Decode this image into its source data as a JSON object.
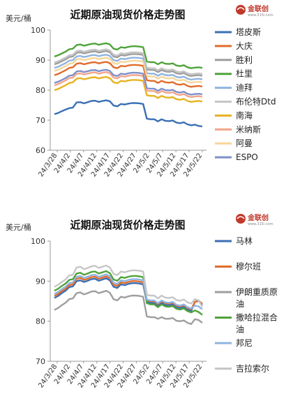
{
  "chart_data": [
    {
      "type": "line",
      "title": "近期原油现货价格走势图",
      "unit_label": "美元/桶",
      "ylim": [
        60,
        100
      ],
      "yticks": [
        60,
        70,
        80,
        90,
        100
      ],
      "grid": false,
      "legend_position": "right",
      "x_tick_labels": [
        "24/3/28",
        "24/4/2",
        "24/4/7",
        "24/4/12",
        "24/4/17",
        "24/4/22",
        "24/4/27",
        "24/5/2",
        "24/5/7",
        "24/5/12",
        "24/5/17",
        "24/5/22"
      ],
      "x": [
        "3/28",
        "3/29",
        "4/1",
        "4/2",
        "4/3",
        "4/4",
        "4/5",
        "4/8",
        "4/9",
        "4/10",
        "4/11",
        "4/12",
        "4/15",
        "4/16",
        "4/17",
        "4/18",
        "4/19",
        "4/22",
        "4/23",
        "4/24",
        "4/25",
        "4/26",
        "4/29",
        "4/30",
        "5/1",
        "5/2",
        "5/3",
        "5/6",
        "5/7",
        "5/8",
        "5/9",
        "5/10",
        "5/13",
        "5/14",
        "5/15",
        "5/16",
        "5/17",
        "5/20",
        "5/21",
        "5/22",
        "5/23"
      ],
      "series": [
        {
          "name": "塔皮斯",
          "color": "#3a6fb5",
          "values": [
            72.0,
            72.4,
            73.0,
            73.5,
            74.0,
            74.2,
            75.9,
            76.0,
            75.6,
            76.0,
            76.4,
            76.5,
            76.1,
            76.4,
            76.6,
            76.3,
            74.9,
            74.6,
            75.4,
            75.2,
            75.5,
            75.7,
            75.7,
            75.6,
            75.4,
            70.5,
            70.3,
            70.3,
            69.6,
            70.3,
            69.8,
            69.7,
            69.9,
            69.2,
            69.0,
            69.3,
            68.6,
            68.3,
            68.5,
            68.1,
            67.9
          ]
        },
        {
          "name": "大庆",
          "color": "#e06c2c",
          "values": [
            85.0,
            85.4,
            86.0,
            86.6,
            87.4,
            87.6,
            88.8,
            89.0,
            88.6,
            88.9,
            89.2,
            89.3,
            88.9,
            89.2,
            89.4,
            89.0,
            87.6,
            87.3,
            88.1,
            87.9,
            88.2,
            88.4,
            88.4,
            88.3,
            88.1,
            83.3,
            83.1,
            83.1,
            82.4,
            83.1,
            82.6,
            82.5,
            82.7,
            82.0,
            81.8,
            82.1,
            81.4,
            81.1,
            81.3,
            81.4,
            81.2
          ]
        },
        {
          "name": "胜利",
          "color": "#9e9e9e",
          "values": [
            88.6,
            89.0,
            89.6,
            90.2,
            91.0,
            91.2,
            92.4,
            92.6,
            92.2,
            92.5,
            92.8,
            92.9,
            92.5,
            92.8,
            93.0,
            92.6,
            91.2,
            90.9,
            91.7,
            91.5,
            91.8,
            92.0,
            92.0,
            91.9,
            91.7,
            86.9,
            86.7,
            86.7,
            86.0,
            86.7,
            86.2,
            86.1,
            86.3,
            85.6,
            85.4,
            85.7,
            85.0,
            84.7,
            84.9,
            85.0,
            84.8
          ]
        },
        {
          "name": "杜里",
          "color": "#4ea33a",
          "values": [
            91.2,
            91.6,
            92.2,
            92.8,
            93.6,
            93.8,
            95.0,
            95.2,
            94.8,
            95.1,
            95.4,
            95.5,
            95.1,
            95.4,
            95.6,
            95.2,
            93.8,
            93.5,
            94.3,
            94.1,
            94.4,
            94.6,
            94.6,
            94.5,
            94.3,
            89.5,
            89.3,
            89.3,
            88.6,
            89.3,
            88.8,
            88.7,
            88.9,
            88.2,
            88.0,
            88.3,
            87.6,
            87.3,
            87.5,
            87.6,
            87.4
          ]
        },
        {
          "name": "迪拜",
          "color": "#8fb4e0",
          "values": [
            87.4,
            87.8,
            88.4,
            89.0,
            89.8,
            90.0,
            91.2,
            91.4,
            91.0,
            91.3,
            91.6,
            91.7,
            91.3,
            91.6,
            91.8,
            91.4,
            90.0,
            89.7,
            90.5,
            90.3,
            90.6,
            90.8,
            90.8,
            90.7,
            90.5,
            85.7,
            85.5,
            85.5,
            84.8,
            85.5,
            85.0,
            84.9,
            85.1,
            84.4,
            84.2,
            84.5,
            83.8,
            83.5,
            83.7,
            83.8,
            83.6
          ]
        },
        {
          "name": "布伦特Dtd",
          "color": "#c6c6c6",
          "values": [
            89.2,
            89.6,
            90.2,
            90.8,
            91.6,
            91.8,
            93.0,
            93.2,
            92.8,
            93.1,
            93.4,
            93.5,
            93.1,
            93.4,
            93.6,
            93.2,
            91.8,
            91.5,
            92.3,
            92.1,
            92.4,
            92.6,
            92.6,
            92.5,
            92.3,
            87.5,
            87.3,
            87.3,
            86.6,
            87.3,
            86.8,
            86.7,
            86.9,
            86.2,
            86.0,
            86.3,
            85.6,
            85.3,
            85.5,
            85.6,
            85.4
          ]
        },
        {
          "name": "南海",
          "color": "#e6b320",
          "values": [
            80.0,
            80.4,
            81.0,
            81.6,
            82.4,
            82.6,
            83.8,
            84.0,
            83.6,
            83.9,
            84.2,
            84.3,
            83.9,
            84.2,
            84.4,
            84.0,
            82.6,
            82.3,
            83.1,
            82.9,
            83.2,
            83.4,
            83.4,
            83.3,
            83.1,
            78.3,
            78.1,
            78.1,
            77.4,
            78.1,
            77.6,
            77.5,
            77.7,
            77.0,
            76.8,
            77.1,
            76.4,
            76.1,
            76.3,
            76.4,
            76.2
          ]
        },
        {
          "name": "米纳斯",
          "color": "#f2a58a",
          "values": [
            81.6,
            82.0,
            82.6,
            83.2,
            84.0,
            84.2,
            85.4,
            85.6,
            85.2,
            85.5,
            85.8,
            85.9,
            85.5,
            85.8,
            86.0,
            85.6,
            84.2,
            83.9,
            84.7,
            84.5,
            84.8,
            85.0,
            85.0,
            84.9,
            84.7,
            79.9,
            79.7,
            79.7,
            79.0,
            79.7,
            79.2,
            79.1,
            79.3,
            78.6,
            78.4,
            78.7,
            78.0,
            77.7,
            77.9,
            78.0,
            77.8
          ]
        },
        {
          "name": "阿曼",
          "color": "#f5d69a",
          "values": [
            86.4,
            86.8,
            87.4,
            88.0,
            88.8,
            89.0,
            90.2,
            90.4,
            90.0,
            90.3,
            90.6,
            90.7,
            90.3,
            90.6,
            90.8,
            90.4,
            89.0,
            88.7,
            89.5,
            89.3,
            89.6,
            89.8,
            89.8,
            89.7,
            89.5,
            84.7,
            84.5,
            84.5,
            83.8,
            84.5,
            84.0,
            83.9,
            84.1,
            83.4,
            83.2,
            83.5,
            82.8,
            82.5,
            82.7,
            82.8,
            82.6
          ]
        },
        {
          "name": "ESPO",
          "color": "#7f8fc9",
          "values": [
            82.4,
            82.8,
            83.4,
            84.0,
            84.8,
            85.0,
            86.2,
            86.4,
            86.0,
            86.3,
            86.6,
            86.7,
            86.3,
            86.6,
            86.8,
            86.4,
            85.0,
            84.7,
            85.5,
            85.3,
            85.6,
            85.8,
            85.8,
            85.7,
            85.5,
            80.7,
            80.5,
            80.5,
            79.8,
            80.5,
            80.0,
            79.9,
            80.1,
            79.4,
            79.2,
            79.5,
            78.8,
            78.5,
            78.7,
            78.8,
            78.6
          ]
        }
      ]
    },
    {
      "type": "line",
      "title": "近期原油现货价格走势图",
      "unit_label": "美元/桶",
      "ylim": [
        70,
        100
      ],
      "yticks": [
        70,
        80,
        90,
        100
      ],
      "grid": false,
      "legend_position": "right",
      "x_tick_labels": [
        "24/3/28",
        "24/4/2",
        "24/4/7",
        "24/4/12",
        "24/4/17",
        "24/4/22",
        "24/4/27",
        "24/5/2",
        "24/5/7",
        "24/5/12",
        "24/5/17",
        "24/5/22"
      ],
      "x": [
        "3/28",
        "3/29",
        "4/1",
        "4/2",
        "4/3",
        "4/4",
        "4/5",
        "4/8",
        "4/9",
        "4/10",
        "4/11",
        "4/12",
        "4/15",
        "4/16",
        "4/17",
        "4/18",
        "4/19",
        "4/22",
        "4/23",
        "4/24",
        "4/25",
        "4/26",
        "4/29",
        "4/30",
        "5/1",
        "5/2",
        "5/3",
        "5/6",
        "5/7",
        "5/8",
        "5/9",
        "5/10",
        "5/13",
        "5/14",
        "5/15",
        "5/16",
        "5/17",
        "5/20",
        "5/21",
        "5/22",
        "5/23"
      ],
      "series": [
        {
          "name": "马林",
          "color": "#3a6fb5",
          "values": [
            85.8,
            86.3,
            87.0,
            87.6,
            88.5,
            88.7,
            90.0,
            90.2,
            89.8,
            90.1,
            90.5,
            90.6,
            90.1,
            90.4,
            90.7,
            90.2,
            88.6,
            88.3,
            89.2,
            89.0,
            89.3,
            89.5,
            89.5,
            89.4,
            89.2,
            84.8,
            84.6,
            84.6,
            83.9,
            84.6,
            84.1,
            84.0,
            84.2,
            83.5,
            83.3,
            83.6,
            82.9,
            82.6,
            84.8,
            85.2,
            84.1
          ]
        },
        {
          "name": "穆尔班",
          "color": "#e06c2c",
          "values": [
            86.3,
            86.8,
            87.5,
            88.1,
            89.0,
            89.2,
            90.6,
            90.8,
            90.3,
            90.6,
            91.0,
            91.1,
            90.6,
            90.9,
            91.2,
            90.7,
            89.1,
            88.8,
            89.7,
            89.5,
            89.8,
            90.0,
            90.0,
            89.9,
            89.7,
            85.2,
            85.0,
            85.0,
            84.3,
            85.0,
            84.5,
            84.4,
            84.6,
            83.9,
            83.7,
            84.0,
            83.3,
            83.0,
            84.8,
            85.0,
            84.4
          ]
        },
        {
          "name": "伊朗重质原油",
          "color": "#9e9e9e",
          "values": [
            82.8,
            83.3,
            84.0,
            84.6,
            85.5,
            85.7,
            87.0,
            87.2,
            86.7,
            87.0,
            87.4,
            87.5,
            87.0,
            87.3,
            87.6,
            87.1,
            85.5,
            85.2,
            86.1,
            85.9,
            86.2,
            86.4,
            86.4,
            86.3,
            86.1,
            81.2,
            81.0,
            81.0,
            80.6,
            81.0,
            80.6,
            80.6,
            80.8,
            80.1,
            80.0,
            80.2,
            79.6,
            79.3,
            80.5,
            80.3,
            79.6
          ]
        },
        {
          "name": "撒哈拉混合油",
          "color": "#4ea33a",
          "values": [
            87.6,
            88.1,
            88.8,
            89.4,
            90.3,
            90.5,
            91.9,
            92.1,
            91.6,
            91.9,
            92.3,
            92.4,
            91.9,
            92.2,
            92.5,
            92.0,
            90.4,
            90.1,
            91.0,
            90.8,
            91.1,
            91.3,
            91.3,
            91.2,
            91.0,
            84.5,
            84.2,
            84.2,
            83.5,
            84.2,
            83.7,
            83.6,
            83.8,
            83.1,
            82.9,
            83.2,
            82.5,
            82.2,
            82.7,
            82.3,
            81.6
          ]
        },
        {
          "name": "邦尼",
          "color": "#8fb4e0",
          "values": [
            86.8,
            87.3,
            88.0,
            88.6,
            89.5,
            89.7,
            91.1,
            91.3,
            90.8,
            91.1,
            91.5,
            91.6,
            91.1,
            91.4,
            91.7,
            91.2,
            89.6,
            89.3,
            90.2,
            90.0,
            90.3,
            90.5,
            90.5,
            90.4,
            90.2,
            85.4,
            85.2,
            85.2,
            84.5,
            85.2,
            84.7,
            84.6,
            84.8,
            84.1,
            83.9,
            84.2,
            83.5,
            83.2,
            83.9,
            83.7,
            83.0
          ]
        },
        {
          "name": "吉拉索尔",
          "color": "#c6c6c6",
          "values": [
            88.6,
            89.1,
            89.8,
            90.4,
            91.4,
            91.6,
            93.4,
            93.6,
            93.0,
            93.3,
            93.7,
            93.8,
            93.3,
            93.6,
            93.9,
            93.4,
            91.8,
            91.5,
            92.4,
            92.2,
            92.5,
            92.7,
            92.7,
            92.6,
            92.4,
            86.6,
            86.4,
            86.4,
            85.7,
            86.4,
            85.9,
            85.8,
            86.0,
            85.3,
            85.1,
            85.4,
            84.7,
            84.4,
            85.5,
            85.2,
            83.6
          ]
        }
      ]
    }
  ],
  "logo": {
    "text": "金联创",
    "sub": "www.315i.com"
  }
}
